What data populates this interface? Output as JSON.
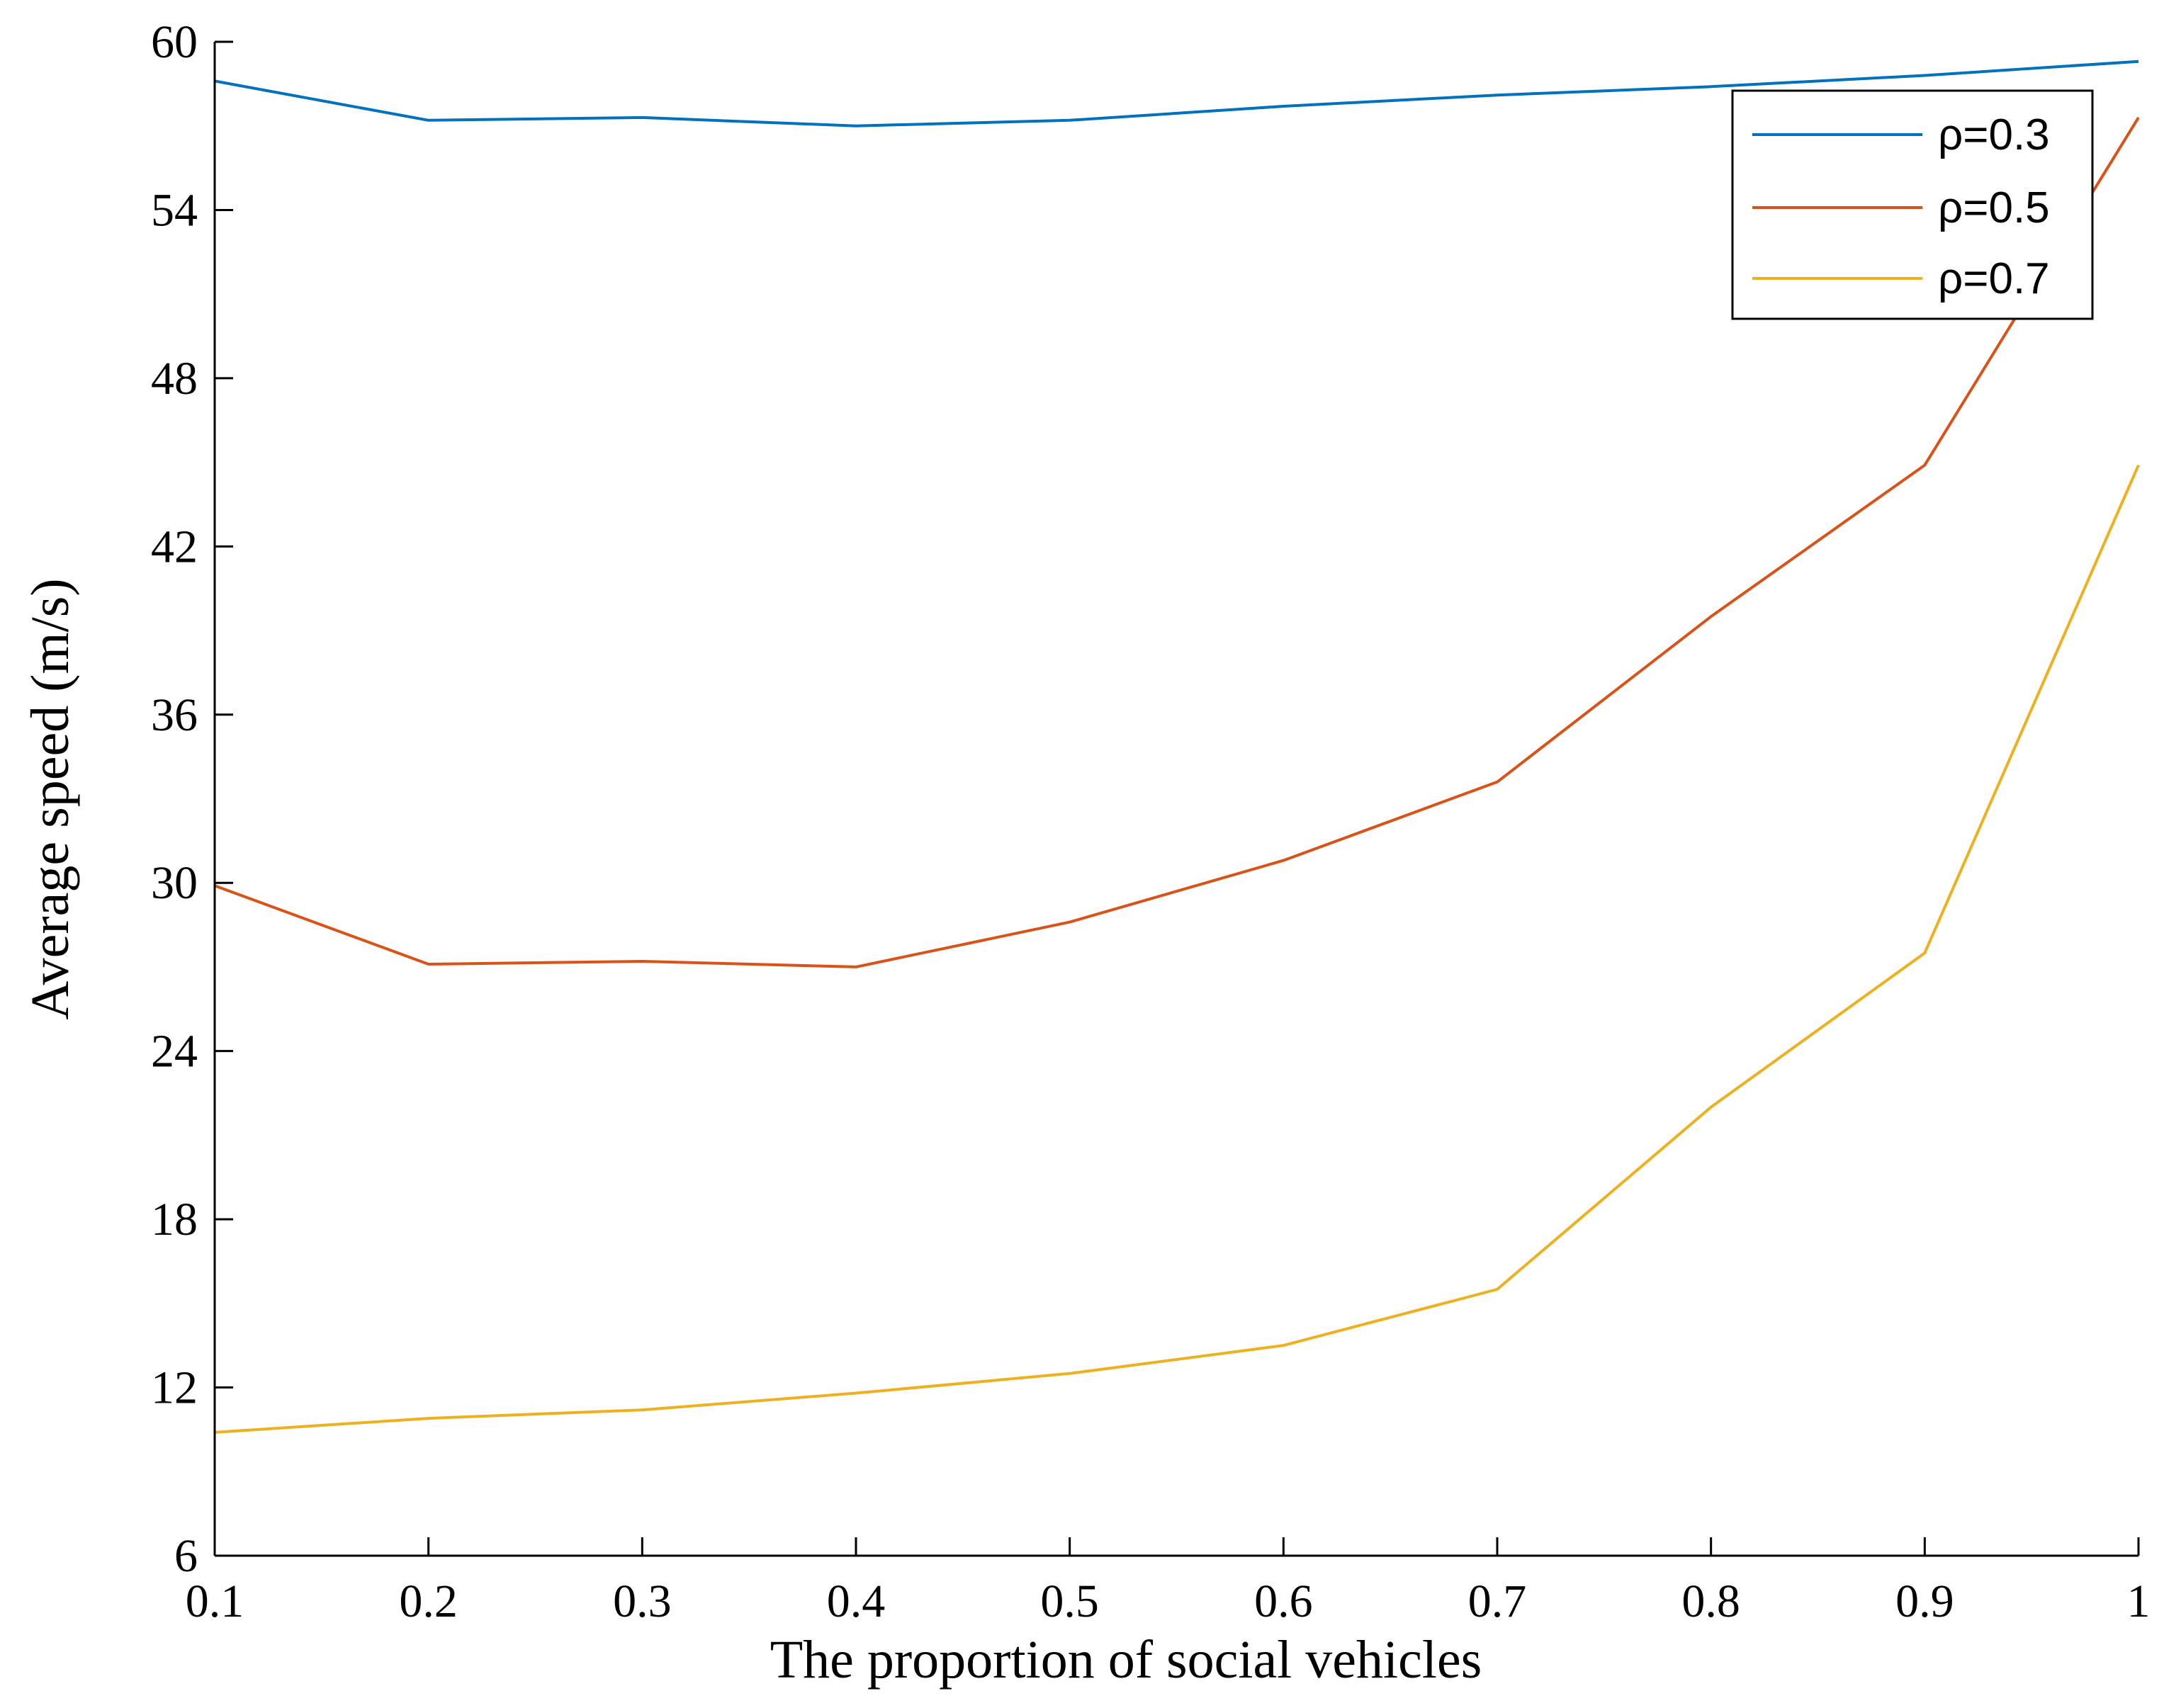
{
  "chart_data": {
    "type": "line",
    "title": "",
    "xlabel": "The proportion of social vehicles",
    "ylabel": "Average speed (m/s)",
    "xlim": [
      0.1,
      1
    ],
    "ylim": [
      6,
      60
    ],
    "x": [
      0.1,
      0.2,
      0.3,
      0.4,
      0.5,
      0.6,
      0.7,
      0.8,
      0.9,
      1
    ],
    "xticks": [
      0.1,
      0.2,
      0.3,
      0.4,
      0.5,
      0.6,
      0.7,
      0.8,
      0.9,
      1
    ],
    "xtick_labels": [
      "0.1",
      "0.2",
      "0.3",
      "0.4",
      "0.5",
      "0.6",
      "0.7",
      "0.8",
      "0.9",
      "1"
    ],
    "yticks": [
      6,
      12,
      18,
      24,
      30,
      36,
      42,
      48,
      54,
      60
    ],
    "ytick_labels": [
      "6",
      "12",
      "18",
      "24",
      "30",
      "36",
      "42",
      "48",
      "54",
      "60"
    ],
    "grid": false,
    "legend_position": "top-right",
    "series": [
      {
        "name": "ρ=0.3",
        "color": "#0072BD",
        "values": [
          58.6,
          57.2,
          57.3,
          57.0,
          57.2,
          57.7,
          58.1,
          58.4,
          58.8,
          59.3
        ]
      },
      {
        "name": "ρ=0.5",
        "color": "#D95319",
        "values": [
          29.9,
          27.1,
          27.2,
          27.0,
          28.6,
          30.8,
          33.6,
          39.5,
          44.9,
          57.3
        ]
      },
      {
        "name": "ρ=0.7",
        "color": "#EDB120",
        "values": [
          10.4,
          10.9,
          11.2,
          11.8,
          12.5,
          13.5,
          15.5,
          22.0,
          27.5,
          44.9
        ]
      }
    ]
  }
}
